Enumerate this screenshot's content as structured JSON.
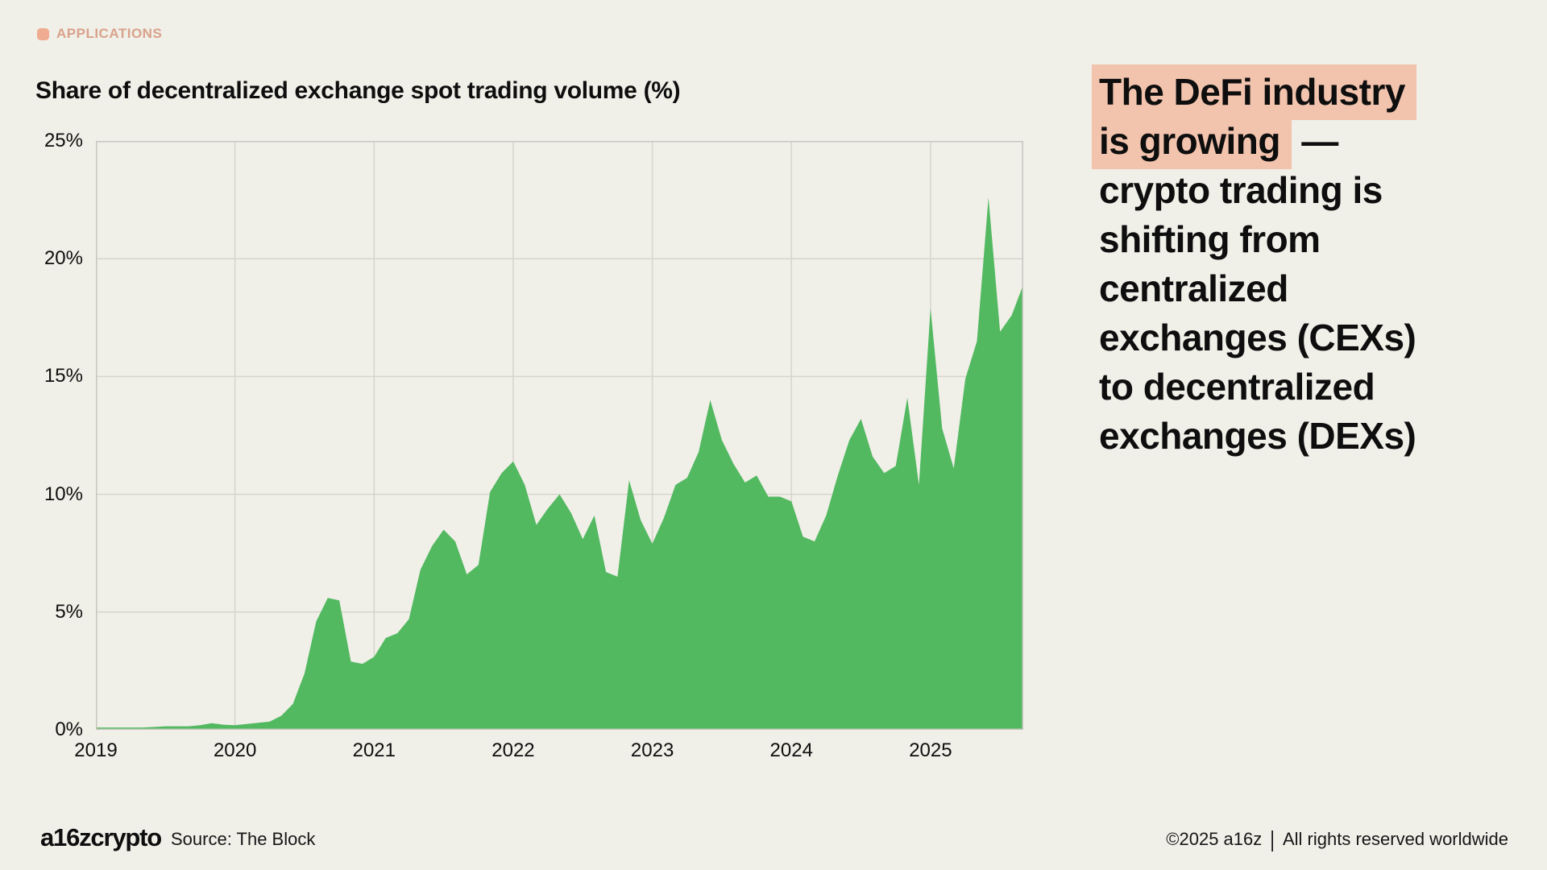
{
  "page": {
    "background": "#f0efe8"
  },
  "tag": {
    "label": "APPLICATIONS",
    "chip_color": "#f0ac90",
    "text_color": "#d9a28b"
  },
  "chart_data": {
    "type": "area",
    "title": "Share of decentralized exchange spot trading volume (%)",
    "series_name": "DEX share of crypto spot trading volume",
    "x_start_month": "2019-01",
    "x_end_month": "2025-09",
    "x_tick_labels": [
      "2019",
      "2020",
      "2021",
      "2022",
      "2023",
      "2024",
      "2025"
    ],
    "y_ticks": [
      "0%",
      "5%",
      "10%",
      "15%",
      "20%",
      "25%"
    ],
    "ylim": [
      0,
      25
    ],
    "grid": true,
    "area_color": "#53b961",
    "grid_color": "#d6d5cd",
    "border_color": "#c7c6bf",
    "values": [
      0.1,
      0.1,
      0.1,
      0.1,
      0.1,
      0.12,
      0.15,
      0.15,
      0.15,
      0.2,
      0.28,
      0.22,
      0.2,
      0.25,
      0.3,
      0.35,
      0.6,
      1.1,
      2.4,
      4.6,
      5.6,
      5.5,
      2.9,
      2.8,
      3.1,
      3.9,
      4.1,
      4.7,
      6.8,
      7.8,
      8.5,
      8.0,
      6.6,
      7.0,
      10.1,
      10.9,
      11.4,
      10.4,
      8.7,
      9.4,
      10.0,
      9.2,
      8.1,
      9.1,
      6.7,
      6.5,
      10.6,
      8.9,
      7.9,
      9.0,
      10.4,
      10.7,
      11.8,
      14.0,
      12.3,
      11.3,
      10.5,
      10.8,
      9.9,
      9.9,
      9.7,
      8.2,
      8.0,
      9.1,
      10.8,
      12.3,
      13.2,
      11.6,
      10.9,
      11.2,
      14.1,
      10.4,
      17.9,
      12.8,
      11.1,
      14.9,
      16.5,
      22.6,
      16.9,
      17.6,
      18.9
    ]
  },
  "callout": {
    "highlight_color": "#f2c3ad",
    "lines": [
      {
        "text": "The DeFi industry",
        "highlight": true
      },
      {
        "text": "is growing",
        "highlight": true,
        "suffix": " —"
      },
      {
        "text": "crypto trading is",
        "highlight": false
      },
      {
        "text": "shifting from",
        "highlight": false
      },
      {
        "text": "centralized",
        "highlight": false
      },
      {
        "text": "exchanges (CEXs)",
        "highlight": false
      },
      {
        "text": "to decentralized",
        "highlight": false
      },
      {
        "text": "exchanges (DEXs)",
        "highlight": false
      }
    ]
  },
  "footer": {
    "logo": "a16zcrypto",
    "source": "Source: The Block",
    "copyright": "©2025 a16z",
    "rights": "All rights reserved worldwide"
  }
}
